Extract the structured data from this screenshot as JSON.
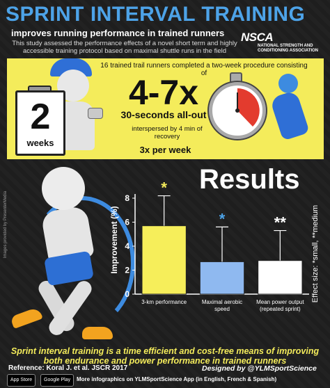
{
  "header": {
    "title": "SPRINT INTERVAL TRAINING",
    "subtitle": "improves running performance in trained runners",
    "description": "This study assessed the performance effects of a novel short term and highly accessible training protocol based on maximal shuttle runs in the field"
  },
  "nsca": {
    "logo": "NSCA",
    "line1": "NATIONAL STRENGTH AND",
    "line2": "CONDITIONING ASSOCIATION"
  },
  "protocol": {
    "intro": "16 trained trail runners completed a two-week procedure consisting of",
    "duration_number": "2",
    "duration_unit": "weeks",
    "reps": "4-7x",
    "effort": "30-seconds all-out",
    "recovery": "interspersed by 4 min of recovery",
    "frequency": "3x per week"
  },
  "image_credit": "Images provided by PresenterMedia",
  "colors": {
    "title_blue": "#4da3e8",
    "yellow": "#f4ec5b",
    "bar_yellow": "#f6ee5a",
    "bar_blue": "#8fb9f0",
    "bar_white": "#ffffff"
  },
  "chart_data": {
    "type": "bar",
    "title": "Results",
    "categories": [
      "3-km performance",
      "Maximal aerobic speed",
      "Mean power output (repeated sprint)"
    ],
    "values": [
      5.7,
      2.7,
      2.8
    ],
    "errors": [
      2.5,
      2.9,
      2.5
    ],
    "significance": [
      "*",
      "*",
      "**"
    ],
    "significance_colors": [
      "#f4ec5b",
      "#4da3e8",
      "#ffffff"
    ],
    "bar_colors": [
      "#f6ee5a",
      "#8fb9f0",
      "#ffffff"
    ],
    "ylabel": "Improvement (%)",
    "ylim": [
      0,
      8
    ],
    "yticks": [
      0,
      2,
      4,
      6,
      8
    ],
    "side_note": "Effect size: *small, **medium"
  },
  "footer": {
    "conclusion": "Sprint interval training is a time efficient and cost-free means of improving both endurance and power performance in trained runners",
    "reference": "Reference: Koral J. et al. JSCR 2017",
    "designed_by": "Designed by @YLMSportScience",
    "app_store": "App Store",
    "google_play": "Google Play",
    "more": "More infographics on YLMSportScience App (in English, French & Spanish)"
  }
}
